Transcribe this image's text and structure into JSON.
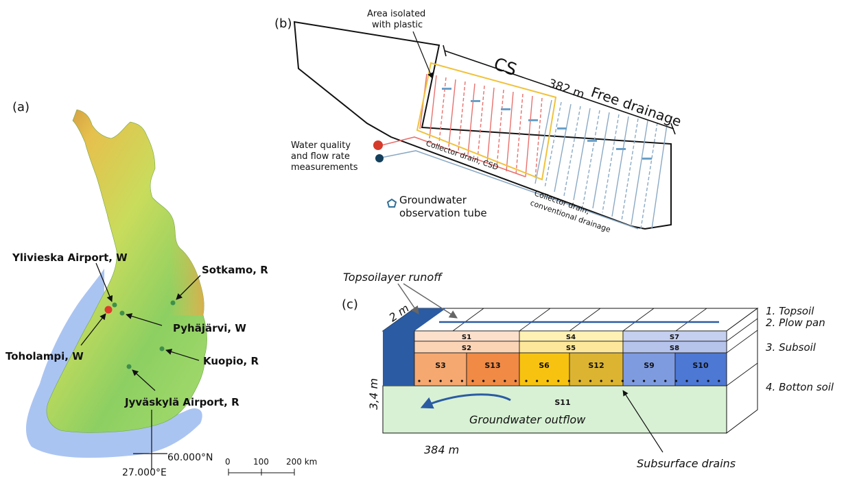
{
  "panel_a": {
    "panel_label": "(a)",
    "stations": [
      {
        "name": "Ylivieska Airport, W"
      },
      {
        "name": "Sotkamo, R"
      },
      {
        "name": "Pyhäjärvi, W"
      },
      {
        "name": "Toholampi, W"
      },
      {
        "name": "Kuopio, R"
      },
      {
        "name": "Jyväskylä Airport, R"
      }
    ],
    "lat_label": "60.000°N",
    "lon_label": "27.000°E",
    "scale_ticks": [
      "0",
      "100",
      "200 km"
    ],
    "colors": {
      "sea": "#aac4f2",
      "lowland": "#8dcf62",
      "upland": "#e6c04d",
      "highland": "#c98a3c",
      "toholampi_marker": "#e03b2c",
      "station_marker": "#3f8f4b"
    }
  },
  "panel_b": {
    "panel_label": "(b)",
    "isolated_area_label_1": "Area isolated",
    "isolated_area_label_2": "with plastic",
    "cs_label": "CS",
    "length_label": "382 m",
    "free_drainage_label": "Free drainage",
    "water_label_1": "Water quality",
    "water_label_2": "and flow rate",
    "water_label_3": "measurements",
    "collector_csd_label": "Collector drain, CSD",
    "collector_conv_label_1": "Collector drain,",
    "collector_conv_label_2": "conventional drainage",
    "gw_tube_label_1": "Groundwater",
    "gw_tube_label_2": "observation tube",
    "colors": {
      "cs_drain": "#e8706c",
      "conv_drain": "#8aa9c4",
      "isolation": "#f0c23b",
      "red_marker": "#d63a2b",
      "navy_marker": "#143f5c"
    }
  },
  "panel_c": {
    "panel_label": "(c)",
    "runoff_label": "Topsoilayer runoff",
    "width_label": "2 m",
    "depth_label": "3,4 m",
    "length_label": "384 m",
    "layers": [
      "1. Topsoil",
      "2. Plow pan",
      "3. Subsoil",
      "4. Botton soil"
    ],
    "sections": [
      "S1",
      "S2",
      "S3",
      "S4",
      "S5",
      "S6",
      "S7",
      "S8",
      "S9",
      "S10",
      "S11",
      "S12",
      "S13"
    ],
    "outflow_label": "Groundwater outflow",
    "drains_label": "Subsurface drains",
    "colors": {
      "ditch": "#2a5ba3",
      "bottom": "#d8f1d4",
      "s1": "#fde0cc",
      "s2": "#fbd4b6",
      "s3": "#f5a870",
      "s13": "#f08a45",
      "s4": "#fff1b3",
      "s5": "#fde79a",
      "s6": "#f7c310",
      "s12": "#dcb432",
      "s7": "#c5cff0",
      "s8": "#b6c4ec",
      "s9": "#7f9be0",
      "s10": "#4d78d4"
    }
  }
}
